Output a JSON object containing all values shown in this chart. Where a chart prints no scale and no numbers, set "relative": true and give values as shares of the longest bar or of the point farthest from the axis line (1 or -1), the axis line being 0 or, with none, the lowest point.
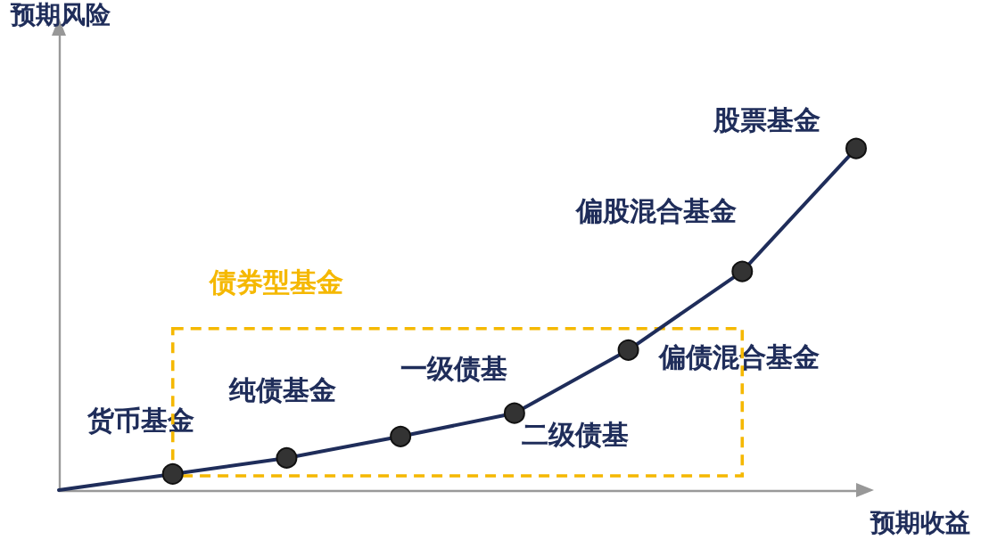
{
  "chart_data": {
    "type": "line",
    "relative": true,
    "xlabel": "预期收益",
    "ylabel": "预期风险",
    "categories": [
      null,
      null,
      null,
      null,
      null,
      null,
      null,
      null
    ],
    "series": [
      {
        "color": "#1f2d5a",
        "marker": "circle",
        "values": [
          0,
          0.047,
          0.094,
          0.157,
          0.225,
          0.41,
          0.64,
          1
        ]
      }
    ],
    "annotations": [
      "货币基金",
      "纯债基金",
      "一级债基",
      "二级债基",
      "偏债混合基金",
      "偏股混合基金",
      "股票基金",
      "债券型基金"
    ],
    "grid": false
  }
}
